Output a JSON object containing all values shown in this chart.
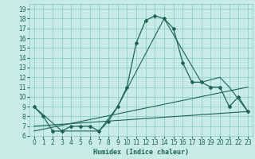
{
  "title": "",
  "xlabel": "Humidex (Indice chaleur)",
  "bg_color": "#c8ebe6",
  "grid_color": "#8ecece",
  "line_color": "#1a6655",
  "xlim": [
    -0.5,
    23.5
  ],
  "ylim": [
    6,
    19.5
  ],
  "xticks": [
    0,
    1,
    2,
    3,
    4,
    5,
    6,
    7,
    8,
    9,
    10,
    11,
    12,
    13,
    14,
    15,
    16,
    17,
    18,
    19,
    20,
    21,
    22,
    23
  ],
  "yticks": [
    6,
    7,
    8,
    9,
    10,
    11,
    12,
    13,
    14,
    15,
    16,
    17,
    18,
    19
  ],
  "line1_x": [
    0,
    1,
    2,
    3,
    4,
    5,
    6,
    7,
    8,
    9,
    10,
    11,
    12,
    13,
    14,
    15,
    16,
    17,
    18,
    19,
    20,
    21,
    22,
    23
  ],
  "line1_y": [
    9.0,
    8.0,
    6.5,
    6.5,
    7.0,
    7.0,
    7.0,
    6.5,
    7.5,
    9.0,
    11.0,
    15.5,
    17.8,
    18.3,
    18.0,
    17.0,
    13.5,
    11.5,
    11.5,
    11.0,
    11.0,
    9.0,
    10.0,
    8.5
  ],
  "line2_x": [
    0,
    3,
    7,
    9,
    14,
    18,
    20,
    21,
    23
  ],
  "line2_y": [
    9.0,
    6.5,
    6.5,
    9.0,
    18.0,
    11.5,
    12.0,
    11.0,
    8.5
  ],
  "line3_x": [
    0,
    23
  ],
  "line3_y": [
    7.0,
    8.5
  ],
  "line4_x": [
    0,
    23
  ],
  "line4_y": [
    6.5,
    11.0
  ],
  "labelsize": 5.5,
  "xlabel_fontsize": 6
}
